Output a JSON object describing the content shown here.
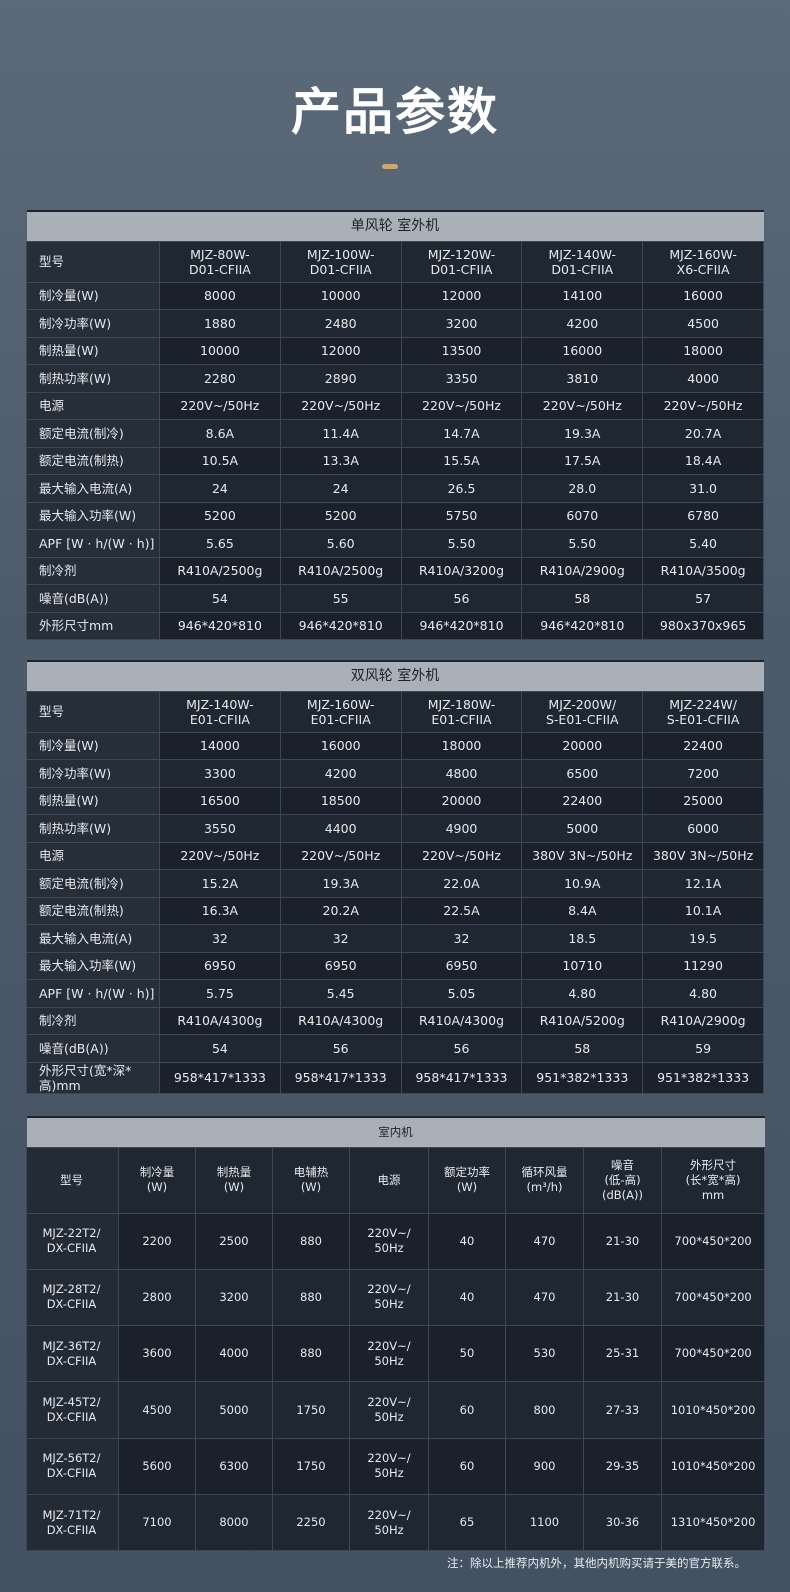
{
  "title": "产品参数",
  "note": "注：除以上推荐内机外，其他内机购买请于美的官方联系。",
  "outdoor_single": {
    "caption": "单风轮 室外机",
    "model_label": "型号",
    "models": [
      "MJZ-80W-\nD01-CFIIA",
      "MJZ-100W-\nD01-CFIIA",
      "MJZ-120W-\nD01-CFIIA",
      "MJZ-140W-\nD01-CFIIA",
      "MJZ-160W-\nX6-CFIIA"
    ],
    "rows": [
      {
        "label": "制冷量(W)",
        "values": [
          "8000",
          "10000",
          "12000",
          "14100",
          "16000"
        ]
      },
      {
        "label": "制冷功率(W)",
        "values": [
          "1880",
          "2480",
          "3200",
          "4200",
          "4500"
        ]
      },
      {
        "label": "制热量(W)",
        "values": [
          "10000",
          "12000",
          "13500",
          "16000",
          "18000"
        ]
      },
      {
        "label": "制热功率(W)",
        "values": [
          "2280",
          "2890",
          "3350",
          "3810",
          "4000"
        ]
      },
      {
        "label": "电源",
        "values": [
          "220V~/50Hz",
          "220V~/50Hz",
          "220V~/50Hz",
          "220V~/50Hz",
          "220V~/50Hz"
        ]
      },
      {
        "label": "额定电流(制冷)",
        "values": [
          "8.6A",
          "11.4A",
          "14.7A",
          "19.3A",
          "20.7A"
        ]
      },
      {
        "label": "额定电流(制热)",
        "values": [
          "10.5A",
          "13.3A",
          "15.5A",
          "17.5A",
          "18.4A"
        ]
      },
      {
        "label": "最大输入电流(A)",
        "values": [
          "24",
          "24",
          "26.5",
          "28.0",
          "31.0"
        ]
      },
      {
        "label": "最大输入功率(W)",
        "values": [
          "5200",
          "5200",
          "5750",
          "6070",
          "6780"
        ]
      },
      {
        "label": "APF [W · h/(W · h)]",
        "values": [
          "5.65",
          "5.60",
          "5.50",
          "5.50",
          "5.40"
        ]
      },
      {
        "label": "制冷剂",
        "values": [
          "R410A/2500g",
          "R410A/2500g",
          "R410A/3200g",
          "R410A/2900g",
          "R410A/3500g"
        ]
      },
      {
        "label": "噪音(dB(A))",
        "values": [
          "54",
          "55",
          "56",
          "58",
          "57"
        ]
      },
      {
        "label": "外形尺寸mm",
        "values": [
          "946*420*810",
          "946*420*810",
          "946*420*810",
          "946*420*810",
          "980x370x965"
        ]
      }
    ]
  },
  "outdoor_double": {
    "caption": "双风轮 室外机",
    "model_label": "型号",
    "models": [
      "MJZ-140W-\nE01-CFIIA",
      "MJZ-160W-\nE01-CFIIA",
      "MJZ-180W-\nE01-CFIIA",
      "MJZ-200W/\nS-E01-CFIIA",
      "MJZ-224W/\nS-E01-CFIIA"
    ],
    "rows": [
      {
        "label": "制冷量(W)",
        "values": [
          "14000",
          "16000",
          "18000",
          "20000",
          "22400"
        ]
      },
      {
        "label": "制冷功率(W)",
        "values": [
          "3300",
          "4200",
          "4800",
          "6500",
          "7200"
        ]
      },
      {
        "label": "制热量(W)",
        "values": [
          "16500",
          "18500",
          "20000",
          "22400",
          "25000"
        ]
      },
      {
        "label": "制热功率(W)",
        "values": [
          "3550",
          "4400",
          "4900",
          "5000",
          "6000"
        ]
      },
      {
        "label": "电源",
        "values": [
          "220V~/50Hz",
          "220V~/50Hz",
          "220V~/50Hz",
          "380V 3N~/50Hz",
          "380V 3N~/50Hz"
        ]
      },
      {
        "label": "额定电流(制冷)",
        "values": [
          "15.2A",
          "19.3A",
          "22.0A",
          "10.9A",
          "12.1A"
        ]
      },
      {
        "label": "额定电流(制热)",
        "values": [
          "16.3A",
          "20.2A",
          "22.5A",
          "8.4A",
          "10.1A"
        ]
      },
      {
        "label": "最大输入电流(A)",
        "values": [
          "32",
          "32",
          "32",
          "18.5",
          "19.5"
        ]
      },
      {
        "label": "最大输入功率(W)",
        "values": [
          "6950",
          "6950",
          "6950",
          "10710",
          "11290"
        ]
      },
      {
        "label": "APF [W · h/(W · h)]",
        "values": [
          "5.75",
          "5.45",
          "5.05",
          "4.80",
          "4.80"
        ]
      },
      {
        "label": "制冷剂",
        "values": [
          "R410A/4300g",
          "R410A/4300g",
          "R410A/4300g",
          "R410A/5200g",
          "R410A/2900g"
        ]
      },
      {
        "label": "噪音(dB(A))",
        "values": [
          "54",
          "56",
          "56",
          "58",
          "59"
        ]
      },
      {
        "label": "外形尺寸(宽*深*高)mm",
        "values": [
          "958*417*1333",
          "958*417*1333",
          "958*417*1333",
          "951*382*1333",
          "951*382*1333"
        ]
      }
    ]
  },
  "indoor": {
    "caption": "室内机",
    "headers": [
      "型号",
      "制冷量\n(W)",
      "制热量\n(W)",
      "电辅热\n(W)",
      "电源",
      "额定功率\n(W)",
      "循环风量\n(m³/h)",
      "噪音\n(低-高)\n(dB(A))",
      "外形尺寸\n(长*宽*高)\nmm"
    ],
    "rows": [
      [
        "MJZ-22T2/\nDX-CFIIA",
        "2200",
        "2500",
        "880",
        "220V~/\n50Hz",
        "40",
        "470",
        "21-30",
        "700*450*200"
      ],
      [
        "MJZ-28T2/\nDX-CFIIA",
        "2800",
        "3200",
        "880",
        "220V~/\n50Hz",
        "40",
        "470",
        "21-30",
        "700*450*200"
      ],
      [
        "MJZ-36T2/\nDX-CFIIA",
        "3600",
        "4000",
        "880",
        "220V~/\n50Hz",
        "50",
        "530",
        "25-31",
        "700*450*200"
      ],
      [
        "MJZ-45T2/\nDX-CFIIA",
        "4500",
        "5000",
        "1750",
        "220V~/\n50Hz",
        "60",
        "800",
        "27-33",
        "1010*450*200"
      ],
      [
        "MJZ-56T2/\nDX-CFIIA",
        "5600",
        "6300",
        "1750",
        "220V~/\n50Hz",
        "60",
        "900",
        "29-35",
        "1010*450*200"
      ],
      [
        "MJZ-71T2/\nDX-CFIIA",
        "7100",
        "8000",
        "2250",
        "220V~/\n50Hz",
        "65",
        "1100",
        "30-36",
        "1310*450*200"
      ]
    ]
  }
}
